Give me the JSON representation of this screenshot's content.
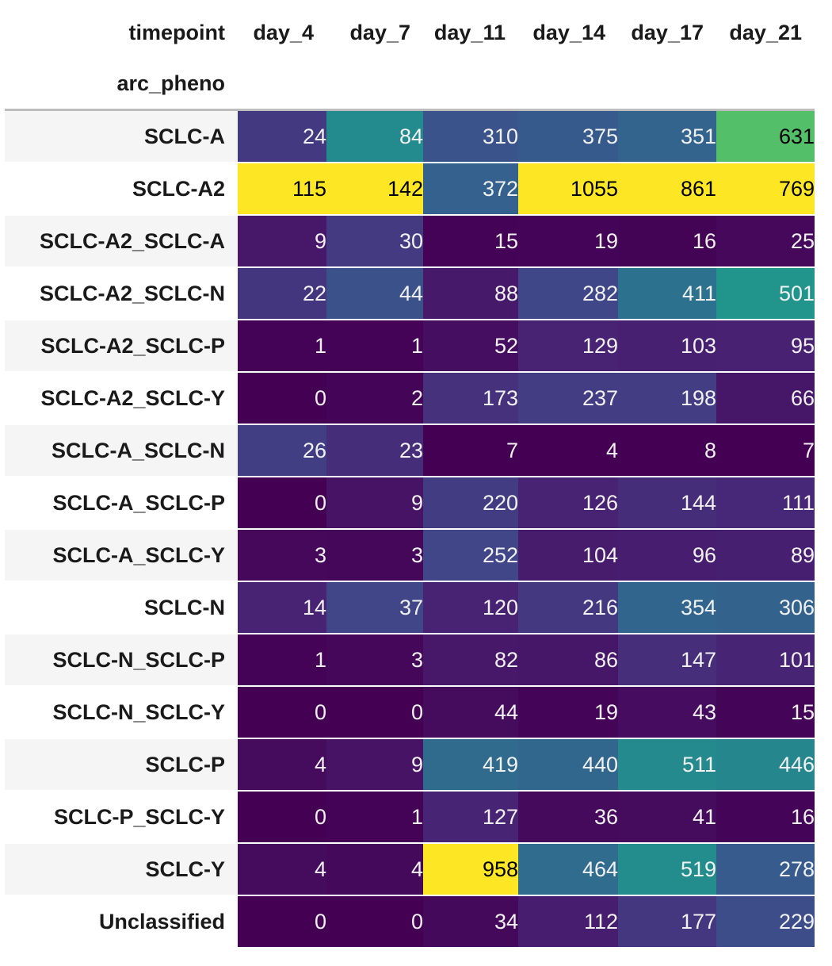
{
  "chart_data": {
    "type": "heatmap",
    "column_axis_title": "timepoint",
    "row_axis_title": "arc_pheno",
    "columns": [
      "day_4",
      "day_7",
      "day_11",
      "day_14",
      "day_17",
      "day_21"
    ],
    "rows": [
      "SCLC-A",
      "SCLC-A2",
      "SCLC-A2_SCLC-A",
      "SCLC-A2_SCLC-N",
      "SCLC-A2_SCLC-P",
      "SCLC-A2_SCLC-Y",
      "SCLC-A_SCLC-N",
      "SCLC-A_SCLC-P",
      "SCLC-A_SCLC-Y",
      "SCLC-N",
      "SCLC-N_SCLC-P",
      "SCLC-N_SCLC-Y",
      "SCLC-P",
      "SCLC-P_SCLC-Y",
      "SCLC-Y",
      "Unclassified"
    ],
    "values": [
      [
        24,
        84,
        310,
        375,
        351,
        631
      ],
      [
        115,
        142,
        372,
        1055,
        861,
        769
      ],
      [
        9,
        30,
        15,
        19,
        16,
        25
      ],
      [
        22,
        44,
        88,
        282,
        411,
        501
      ],
      [
        1,
        1,
        52,
        129,
        103,
        95
      ],
      [
        0,
        2,
        173,
        237,
        198,
        66
      ],
      [
        26,
        23,
        7,
        4,
        8,
        7
      ],
      [
        0,
        9,
        220,
        126,
        144,
        111
      ],
      [
        3,
        3,
        252,
        104,
        96,
        89
      ],
      [
        14,
        37,
        120,
        216,
        354,
        306
      ],
      [
        1,
        3,
        82,
        86,
        147,
        101
      ],
      [
        0,
        0,
        44,
        19,
        43,
        15
      ],
      [
        4,
        9,
        419,
        440,
        511,
        446
      ],
      [
        0,
        1,
        127,
        36,
        41,
        16
      ],
      [
        4,
        4,
        958,
        464,
        519,
        278
      ],
      [
        0,
        0,
        34,
        112,
        177,
        229
      ]
    ],
    "colormap": "viridis",
    "color_scale": "per-column"
  }
}
